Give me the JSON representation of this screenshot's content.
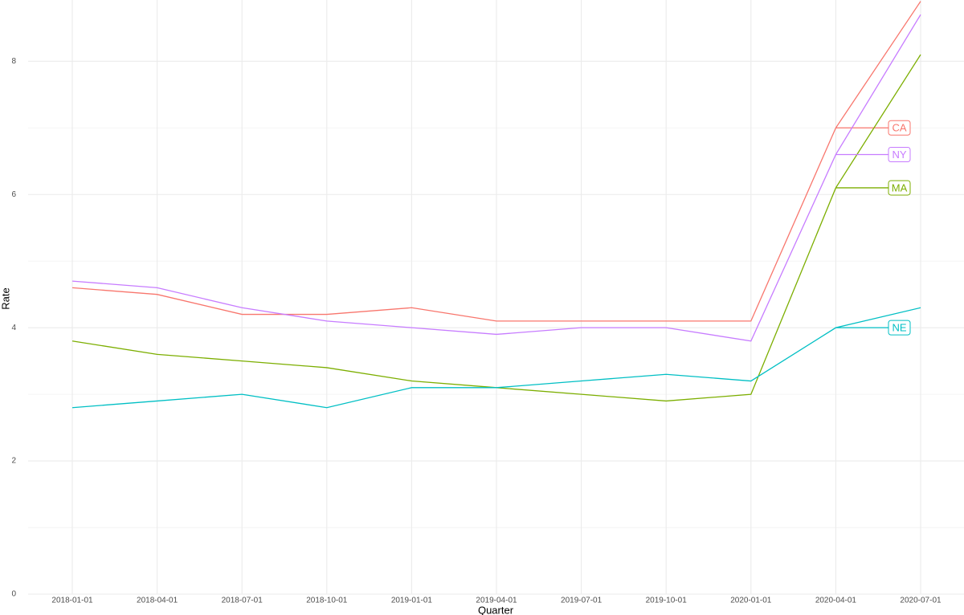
{
  "chart_data": {
    "type": "line",
    "x_label": "Quarter",
    "y_label": "Rate",
    "categories": [
      "2018-01-01",
      "2018-04-01",
      "2018-07-01",
      "2018-10-01",
      "2019-01-01",
      "2019-04-01",
      "2019-07-01",
      "2019-10-01",
      "2020-01-01",
      "2020-04-01",
      "2020-07-01"
    ],
    "series": [
      {
        "name": "CA",
        "color": "#F8766D",
        "values": [
          4.6,
          4.5,
          4.2,
          4.2,
          4.3,
          4.1,
          4.1,
          4.1,
          4.1,
          7.0,
          8.9
        ]
      },
      {
        "name": "MA",
        "color": "#7CAE00",
        "values": [
          3.8,
          3.6,
          3.5,
          3.4,
          3.2,
          3.1,
          3.0,
          2.9,
          3.0,
          6.1,
          8.1
        ]
      },
      {
        "name": "NE",
        "color": "#00BFC4",
        "values": [
          2.8,
          2.9,
          3.0,
          2.8,
          3.1,
          3.1,
          3.2,
          3.3,
          3.2,
          4.0,
          4.3
        ]
      },
      {
        "name": "NY",
        "color": "#C77CFF",
        "values": [
          4.7,
          4.6,
          4.3,
          4.1,
          4.0,
          3.9,
          4.0,
          4.0,
          3.8,
          6.6,
          8.7
        ]
      }
    ],
    "ylim": [
      0,
      8.92
    ],
    "yticks": [
      0,
      2,
      4,
      6,
      8
    ],
    "yminorticks": [
      1,
      3,
      5,
      7
    ],
    "grid": true
  }
}
